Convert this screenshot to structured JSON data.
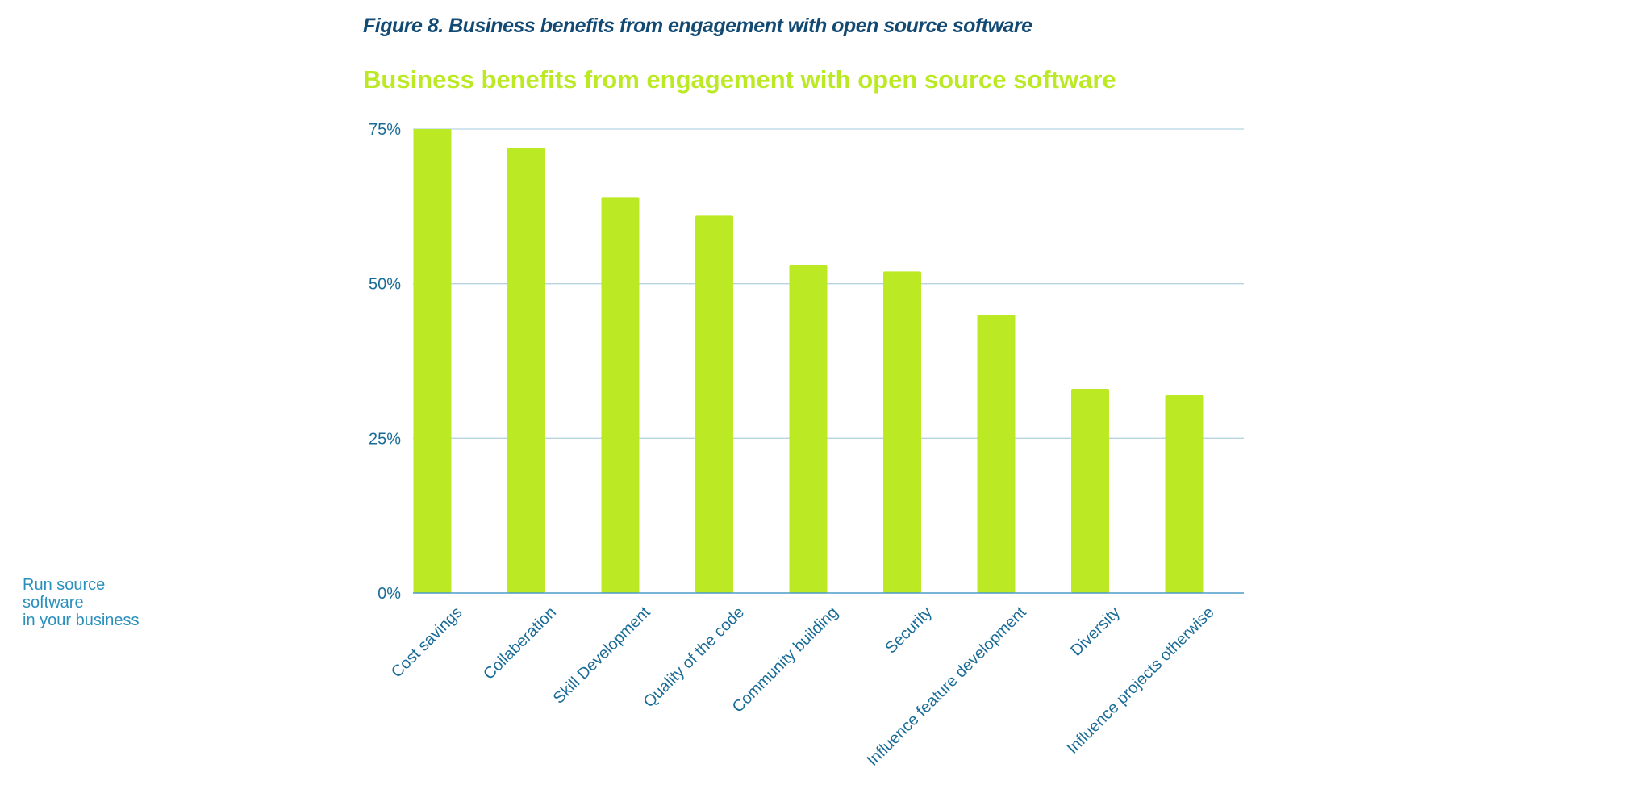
{
  "figure_caption": "Figure 8. Business benefits from engagement with open source software",
  "side_note": {
    "line1": "Run source",
    "line2": "software",
    "line3": "in your business"
  },
  "colors": {
    "bar": "#bbe924",
    "grid": "#b8d4e2",
    "axis": "#4a9cc8",
    "text": "#1a6c96",
    "caption": "#134a74"
  },
  "chart_data": {
    "type": "bar",
    "title": "Business benefits from engagement with open source software",
    "xlabel": "",
    "ylabel": "",
    "categories": [
      "Cost savings",
      "Collaberation",
      "Skill Development",
      "Quality of the code",
      "Community building",
      "Security",
      "Influence feature development",
      "Diversity",
      "Influence projects otherwise"
    ],
    "values": [
      75,
      72,
      64,
      61,
      53,
      52,
      45,
      33,
      32
    ],
    "ylim": [
      0,
      75
    ],
    "yticks": [
      0,
      25,
      50,
      75
    ],
    "ytick_labels": [
      "0%",
      "25%",
      "50%",
      "75%"
    ],
    "grid": true,
    "legend": "none"
  }
}
